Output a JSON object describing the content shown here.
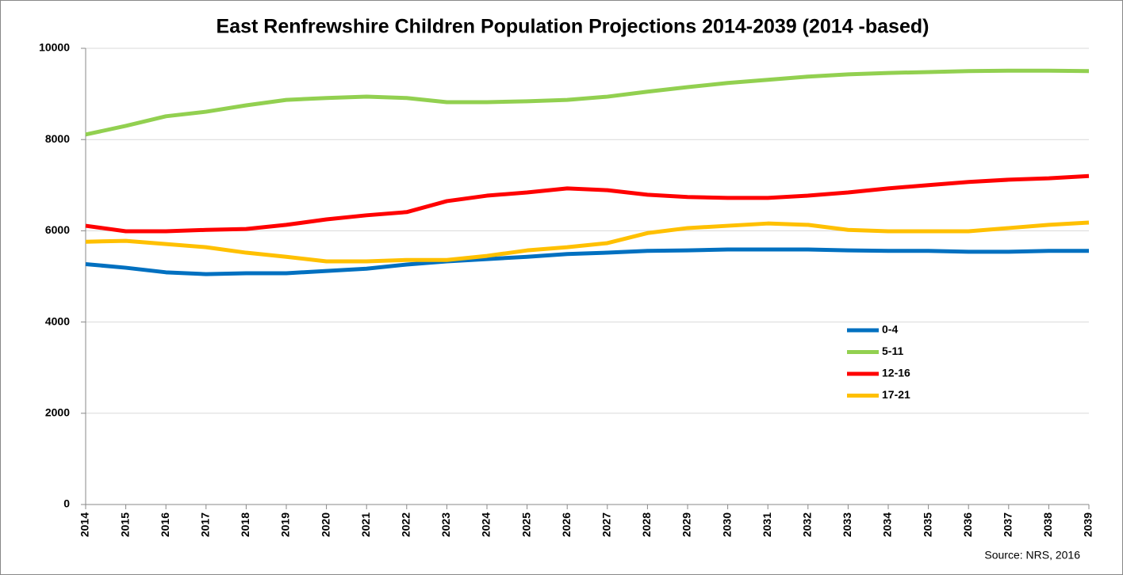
{
  "chart_data": {
    "type": "line",
    "title": "East Renfrewshire Children Population Projections 2014-2039 (2014 -based)",
    "annotation": "Source: NRS, 2016",
    "categories": [
      "2014",
      "2015",
      "2016",
      "2017",
      "2018",
      "2019",
      "2020",
      "2021",
      "2022",
      "2023",
      "2024",
      "2025",
      "2026",
      "2027",
      "2028",
      "2029",
      "2030",
      "2031",
      "2032",
      "2033",
      "2034",
      "2035",
      "2036",
      "2037",
      "2038",
      "2039"
    ],
    "series": [
      {
        "name": "0-4",
        "color": "#0070c0",
        "values": [
          5270,
          5190,
          5090,
          5050,
          5070,
          5070,
          5120,
          5170,
          5260,
          5330,
          5380,
          5430,
          5490,
          5520,
          5560,
          5570,
          5590,
          5590,
          5590,
          5570,
          5560,
          5560,
          5540,
          5540,
          5560,
          5560
        ]
      },
      {
        "name": "5-11",
        "color": "#92d050",
        "values": [
          8110,
          8300,
          8510,
          8610,
          8750,
          8870,
          8910,
          8940,
          8910,
          8820,
          8820,
          8840,
          8870,
          8940,
          9050,
          9150,
          9240,
          9310,
          9380,
          9430,
          9460,
          9480,
          9500,
          9510,
          9510,
          9500
        ]
      },
      {
        "name": "12-16",
        "color": "#ff0000",
        "values": [
          6110,
          5990,
          5990,
          6020,
          6040,
          6130,
          6250,
          6340,
          6410,
          6650,
          6770,
          6840,
          6930,
          6890,
          6790,
          6740,
          6720,
          6720,
          6770,
          6840,
          6930,
          7000,
          7070,
          7120,
          7150,
          7200
        ]
      },
      {
        "name": "17-21",
        "color": "#ffc000",
        "values": [
          5760,
          5780,
          5710,
          5640,
          5520,
          5430,
          5330,
          5330,
          5360,
          5360,
          5450,
          5570,
          5640,
          5730,
          5950,
          6060,
          6110,
          6160,
          6130,
          6020,
          5990,
          5990,
          5990,
          6060,
          6130,
          6180
        ]
      }
    ],
    "ylim": [
      0,
      10000
    ],
    "yticks": [
      0,
      2000,
      4000,
      6000,
      8000,
      10000
    ],
    "grid": true
  }
}
